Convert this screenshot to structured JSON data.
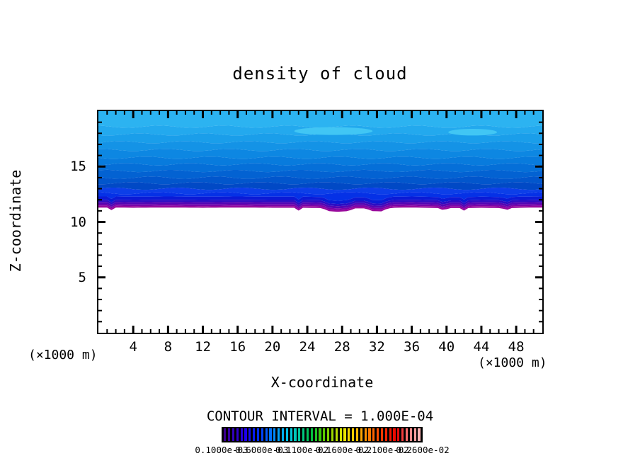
{
  "title": "density of cloud",
  "axes": {
    "x": {
      "label": "X-coordinate",
      "unit": "(×1000 m)",
      "major_ticks": [
        4,
        8,
        12,
        16,
        20,
        24,
        28,
        32,
        36,
        40,
        44,
        48
      ],
      "minor_step": 1,
      "range": [
        0,
        51
      ]
    },
    "z": {
      "label": "Z-coordinate",
      "unit": "(×1000 m)",
      "major_ticks": [
        5,
        10,
        15
      ],
      "minor_step": 1,
      "range": [
        0,
        20
      ]
    }
  },
  "contour_note": "CONTOUR INTERVAL = 1.000E-04",
  "colorbar": {
    "labels": [
      "0.1000e-03",
      "0.6000e-03",
      "0.1100e-02",
      "0.1600e-02",
      "0.2100e-02",
      "0.2600e-02"
    ],
    "stripe_count": 48,
    "gradient_stops": [
      "#3C0090",
      "#3000C8",
      "#1C00F0",
      "#0028FF",
      "#0064FF",
      "#00A0F8",
      "#00C8E0",
      "#00C896",
      "#00C040",
      "#48C800",
      "#A0D800",
      "#E8E800",
      "#FFC800",
      "#FF9000",
      "#FF5800",
      "#F82000",
      "#E80000",
      "#FF8080",
      "#FFB4B4"
    ]
  },
  "chart_data": {
    "type": "filled_contour",
    "title": "density of cloud",
    "xlabel": "X-coordinate",
    "ylabel": "Z-coordinate",
    "x_range": [
      0,
      51
    ],
    "z_range": [
      0,
      20
    ],
    "contour_interval": "1.000E-04",
    "legend": "colorbar bottom, rainbow, values increase left to right",
    "bands": [
      {
        "z_top": 20.0,
        "z_bottom": 18.6,
        "color": "#2CB3F1"
      },
      {
        "z_top": 18.6,
        "z_bottom": 17.9,
        "color": "#23A9EE"
      },
      {
        "z_top": 17.9,
        "z_bottom": 17.2,
        "color": "#1A9EEA"
      },
      {
        "z_top": 17.2,
        "z_bottom": 16.5,
        "color": "#1493E6"
      },
      {
        "z_top": 16.5,
        "z_bottom": 15.8,
        "color": "#0D87E2"
      },
      {
        "z_top": 15.8,
        "z_bottom": 15.2,
        "color": "#087BDD"
      },
      {
        "z_top": 15.2,
        "z_bottom": 14.6,
        "color": "#056FD8"
      },
      {
        "z_top": 14.6,
        "z_bottom": 14.0,
        "color": "#0362D2"
      },
      {
        "z_top": 14.0,
        "z_bottom": 13.5,
        "color": "#0256CC"
      },
      {
        "z_top": 13.5,
        "z_bottom": 13.0,
        "color": "#0149C5"
      },
      {
        "z_top": 13.0,
        "z_bottom": 12.6,
        "color": "#0C3FE8"
      },
      {
        "z_top": 12.6,
        "z_bottom": 12.2,
        "color": "#0531E6"
      },
      {
        "z_top": 12.2,
        "z_bottom": 11.9,
        "color": "#0B1BD6"
      },
      {
        "z_top": 11.9,
        "z_bottom": 11.7,
        "color": "#2B0DC4"
      },
      {
        "z_top": 11.7,
        "z_bottom": 11.5,
        "color": "#5406B4"
      },
      {
        "z_top": 11.5,
        "z_bottom": 11.35,
        "color": "#7B02A8"
      },
      {
        "z_top": 11.35,
        "z_bottom": 11.2,
        "color": "#99099B"
      }
    ],
    "base_profile": [
      [
        0,
        11.3
      ],
      [
        1,
        11.3
      ],
      [
        1.4,
        11.0
      ],
      [
        1.8,
        11.3
      ],
      [
        4,
        11.28
      ],
      [
        8,
        11.3
      ],
      [
        12,
        11.28
      ],
      [
        16,
        11.3
      ],
      [
        20,
        11.28
      ],
      [
        22.6,
        11.28
      ],
      [
        23,
        11.02
      ],
      [
        23.4,
        11.28
      ],
      [
        25.8,
        11.25
      ],
      [
        26.3,
        10.98
      ],
      [
        27.5,
        10.92
      ],
      [
        28.8,
        10.98
      ],
      [
        29.3,
        11.22
      ],
      [
        30.8,
        11.22
      ],
      [
        31.3,
        10.98
      ],
      [
        32.6,
        10.95
      ],
      [
        33.2,
        11.22
      ],
      [
        34,
        11.28
      ],
      [
        36,
        11.3
      ],
      [
        39.2,
        11.25
      ],
      [
        39.7,
        11.0
      ],
      [
        40.2,
        11.25
      ],
      [
        41.6,
        11.25
      ],
      [
        42,
        11.02
      ],
      [
        42.4,
        11.25
      ],
      [
        44,
        11.28
      ],
      [
        46.4,
        11.25
      ],
      [
        46.8,
        11.0
      ],
      [
        47.3,
        11.25
      ],
      [
        48.5,
        11.28
      ],
      [
        51,
        11.3
      ]
    ],
    "patches": [
      {
        "cx": 27,
        "cz": 18.2,
        "rx": 4.5,
        "rz": 0.35,
        "color": "#41C6F4"
      },
      {
        "cx": 43,
        "cz": 18.1,
        "rx": 2.8,
        "rz": 0.3,
        "color": "#41C6F4"
      }
    ]
  }
}
